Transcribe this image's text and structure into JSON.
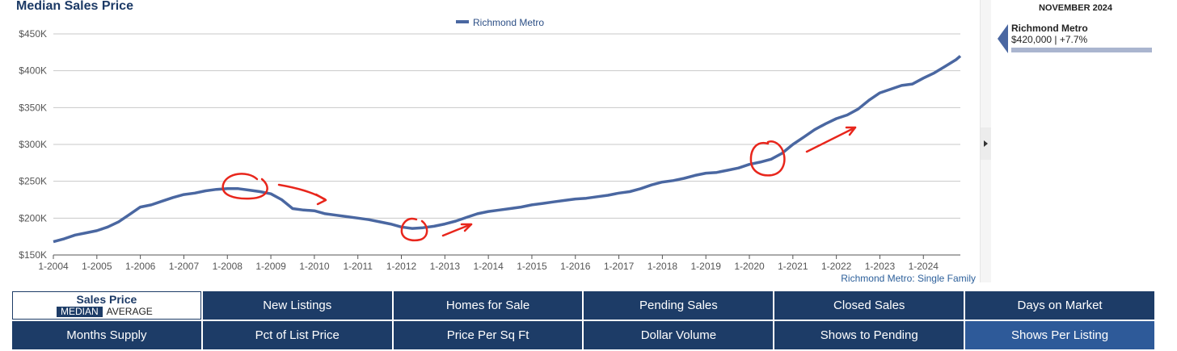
{
  "title": "Median Sales Price",
  "side_panel": {
    "month": "NOVEMBER 2024",
    "region": "Richmond Metro",
    "value_text": "$420,000 | +7.7%"
  },
  "source_note": "Richmond Metro: Single Family",
  "chart_data": {
    "type": "line",
    "title": "Median Sales Price",
    "xlabel": "",
    "ylabel": "",
    "ylim": [
      150000,
      450000
    ],
    "y_ticks": [
      150000,
      200000,
      250000,
      300000,
      350000,
      400000,
      450000
    ],
    "y_tick_labels": [
      "$150K",
      "$200K",
      "$250K",
      "$300K",
      "$350K",
      "$400K",
      "$450K"
    ],
    "x_ticks": [
      2004,
      2005,
      2006,
      2007,
      2008,
      2009,
      2010,
      2011,
      2012,
      2013,
      2014,
      2015,
      2016,
      2017,
      2018,
      2019,
      2020,
      2021,
      2022,
      2023,
      2024
    ],
    "x_tick_labels": [
      "1-2004",
      "1-2005",
      "1-2006",
      "1-2007",
      "1-2008",
      "1-2009",
      "1-2010",
      "1-2011",
      "1-2012",
      "1-2013",
      "1-2014",
      "1-2015",
      "1-2016",
      "1-2017",
      "1-2018",
      "1-2019",
      "1-2020",
      "1-2021",
      "1-2022",
      "1-2023",
      "1-2024"
    ],
    "xlim": [
      2004,
      2024.85
    ],
    "grid": true,
    "legend": "top-center",
    "color": "#4a67a1",
    "series": [
      {
        "name": "Richmond Metro",
        "x": [
          2004.0,
          2004.25,
          2004.5,
          2004.75,
          2005.0,
          2005.25,
          2005.5,
          2005.75,
          2006.0,
          2006.25,
          2006.5,
          2006.75,
          2007.0,
          2007.25,
          2007.5,
          2007.75,
          2008.0,
          2008.25,
          2008.5,
          2008.75,
          2009.0,
          2009.25,
          2009.5,
          2009.75,
          2010.0,
          2010.25,
          2010.5,
          2010.75,
          2011.0,
          2011.25,
          2011.5,
          2011.75,
          2012.0,
          2012.25,
          2012.5,
          2012.75,
          2013.0,
          2013.25,
          2013.5,
          2013.75,
          2014.0,
          2014.25,
          2014.5,
          2014.75,
          2015.0,
          2015.25,
          2015.5,
          2015.75,
          2016.0,
          2016.25,
          2016.5,
          2016.75,
          2017.0,
          2017.25,
          2017.5,
          2017.75,
          2018.0,
          2018.25,
          2018.5,
          2018.75,
          2019.0,
          2019.25,
          2019.5,
          2019.75,
          2020.0,
          2020.25,
          2020.5,
          2020.75,
          2021.0,
          2021.25,
          2021.5,
          2021.75,
          2022.0,
          2022.25,
          2022.5,
          2022.75,
          2023.0,
          2023.25,
          2023.5,
          2023.75,
          2024.0,
          2024.25,
          2024.5,
          2024.75,
          2024.85
        ],
        "values": [
          168000,
          172000,
          177000,
          180000,
          183000,
          188000,
          195000,
          205000,
          215000,
          218000,
          223000,
          228000,
          232000,
          234000,
          237000,
          239000,
          240000,
          240000,
          238000,
          236000,
          233000,
          225000,
          213000,
          211000,
          210000,
          206000,
          204000,
          202000,
          200000,
          198000,
          195000,
          192000,
          188000,
          186000,
          187000,
          189000,
          192000,
          196000,
          201000,
          206000,
          209000,
          211000,
          213000,
          215000,
          218000,
          220000,
          222000,
          224000,
          226000,
          227000,
          229000,
          231000,
          234000,
          236000,
          240000,
          245000,
          249000,
          251000,
          254000,
          258000,
          261000,
          262000,
          265000,
          268000,
          273000,
          276000,
          280000,
          288000,
          300000,
          310000,
          320000,
          328000,
          335000,
          340000,
          348000,
          360000,
          370000,
          375000,
          380000,
          382000,
          390000,
          397000,
          406000,
          415000,
          420000
        ]
      }
    ]
  },
  "metrics": {
    "active": {
      "label": "Sales Price",
      "toggle_median": "MEDIAN",
      "toggle_average": "AVERAGE"
    },
    "tabs": [
      "New Listings",
      "Homes for Sale",
      "Pending Sales",
      "Closed Sales",
      "Days on Market",
      "Months Supply",
      "Pct of List Price",
      "Price Per Sq Ft",
      "Dollar Volume",
      "Shows to Pending",
      "Shows Per Listing"
    ]
  }
}
